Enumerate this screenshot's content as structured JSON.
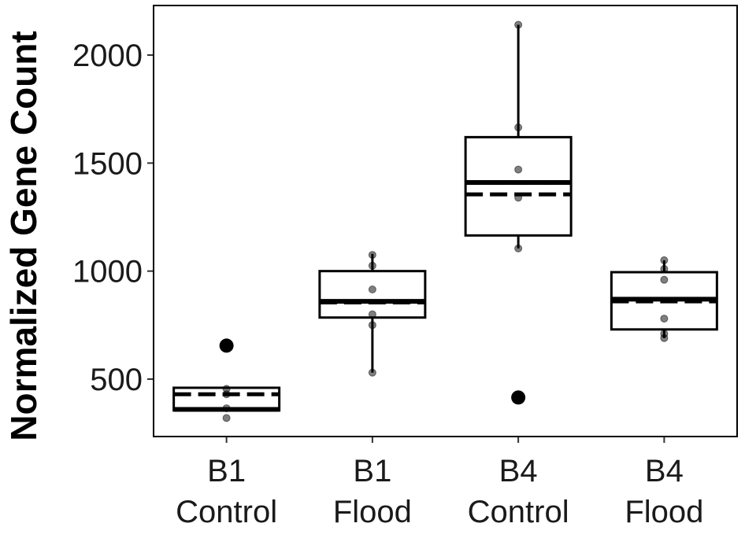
{
  "chart_data": {
    "type": "box",
    "ylabel": "Normalized Gene Count",
    "xlabel": "",
    "ylim": [
      250,
      2250
    ],
    "yticks": [
      500,
      1000,
      1500,
      2000
    ],
    "grid": false,
    "legend": "none",
    "groups": [
      {
        "label_line1": "B1",
        "label_line2": "Control",
        "q1": 355,
        "median": 360,
        "mean": 430,
        "q3": 460,
        "whisker_low": 355,
        "whisker_high": 460,
        "points": [
          320,
          365,
          430,
          455
        ],
        "outliers": [
          655
        ]
      },
      {
        "label_line1": "B1",
        "label_line2": "Flood",
        "q1": 785,
        "median": 860,
        "mean": 855,
        "q3": 1000,
        "whisker_low": 530,
        "whisker_high": 1080,
        "points": [
          530,
          750,
          800,
          915,
          1025,
          1075
        ],
        "outliers": []
      },
      {
        "label_line1": "B4",
        "label_line2": "Control",
        "q1": 1165,
        "median": 1410,
        "mean": 1355,
        "q3": 1620,
        "whisker_low": 1105,
        "whisker_high": 2140,
        "points": [
          1105,
          1340,
          1470,
          1665,
          2140
        ],
        "outliers": [
          415
        ]
      },
      {
        "label_line1": "B4",
        "label_line2": "Flood",
        "q1": 730,
        "median": 870,
        "mean": 860,
        "q3": 995,
        "whisker_low": 690,
        "whisker_high": 1050,
        "points": [
          690,
          710,
          780,
          960,
          1010,
          1050
        ],
        "outliers": []
      }
    ]
  }
}
